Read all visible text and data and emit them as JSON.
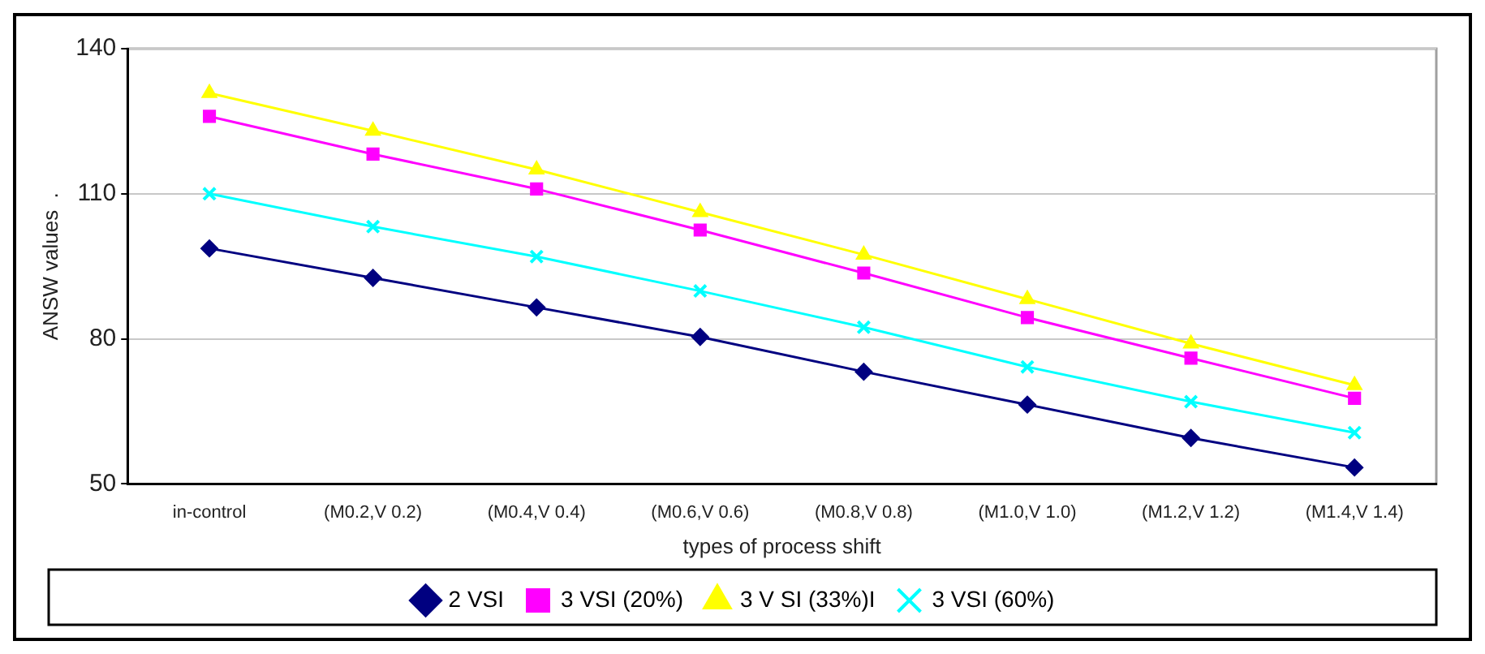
{
  "chart_data": {
    "type": "line",
    "xlabel": "types of process shift",
    "ylabel": "ANSW values  .",
    "categories": [
      "in-control",
      "(M0.2,V 0.2)",
      "(M0.4,V 0.4)",
      "(M0.6,V 0.6)",
      "(M0.8,V 0.8)",
      "(M1.0,V 1.0)",
      "(M1.2,V 1.2)",
      "(M1.4,V 1.4)"
    ],
    "series": [
      {
        "name": "2 VSI",
        "color": "#000080",
        "marker": "diamond",
        "values": [
          98.7,
          92.6,
          86.5,
          80.4,
          73.2,
          66.4,
          59.5,
          53.4
        ]
      },
      {
        "name": "3 VSI (20%)",
        "color": "#ff00ff",
        "marker": "square",
        "values": [
          126,
          118.2,
          111,
          102.5,
          93.6,
          84.4,
          76,
          67.7
        ]
      },
      {
        "name": "3 V SI (33%)I",
        "color": "#ffff00",
        "marker": "triangle",
        "values": [
          130.8,
          123,
          115,
          106.2,
          97.4,
          88.2,
          79,
          70.4
        ]
      },
      {
        "name": "3 VSI (60%)",
        "color": "#00ffff",
        "marker": "cross",
        "values": [
          110,
          103.2,
          97,
          89.9,
          82.4,
          74.2,
          67,
          60.6
        ]
      }
    ],
    "ylim": [
      50,
      140
    ],
    "yticks": [
      50,
      80,
      110,
      140
    ],
    "grid": "y",
    "legend": "bottom",
    "line_style": "solid"
  }
}
